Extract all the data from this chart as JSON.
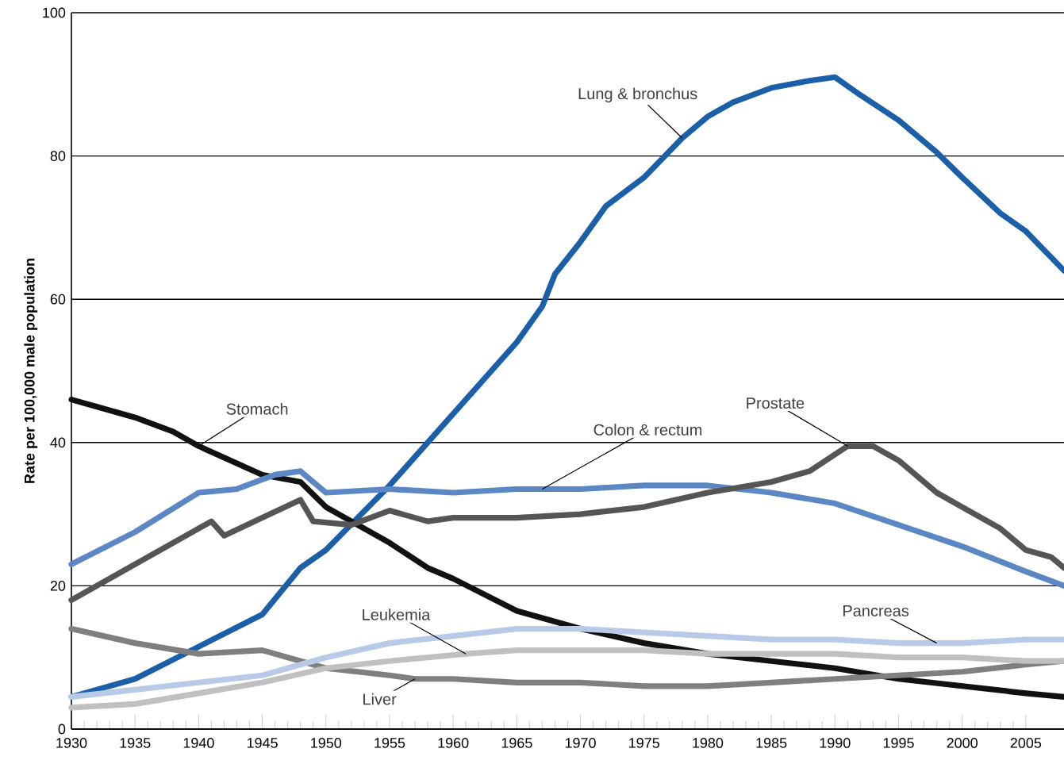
{
  "chart_data": {
    "type": "line",
    "ylabel": "Rate per 100,000 male population",
    "xlim": [
      1930,
      2008
    ],
    "xticks": [
      1930,
      1935,
      1940,
      1945,
      1950,
      1955,
      1960,
      1965,
      1970,
      1975,
      1980,
      1985,
      1990,
      1995,
      2000,
      2005
    ],
    "ylim": [
      0,
      100
    ],
    "yticks": [
      0,
      20,
      40,
      60,
      80,
      100
    ],
    "grid": "y",
    "legend": false,
    "marker": "none",
    "line_style": "solid",
    "series": [
      {
        "name": "Lung & bronchus",
        "color": "#1a5fa8",
        "x": [
          1930,
          1935,
          1940,
          1945,
          1948,
          1950,
          1955,
          1960,
          1965,
          1967,
          1968,
          1970,
          1972,
          1975,
          1978,
          1980,
          1982,
          1985,
          1988,
          1990,
          1992,
          1995,
          1998,
          2000,
          2003,
          2005,
          2008
        ],
        "values": [
          4.5,
          7,
          11.5,
          16,
          22.5,
          25,
          34,
          44,
          54,
          59,
          63.5,
          68,
          73,
          77,
          82.5,
          85.5,
          87.5,
          89.5,
          90.5,
          91,
          88.5,
          85,
          80.5,
          77,
          72,
          69.5,
          64
        ]
      },
      {
        "name": "Stomach",
        "color": "#111111",
        "x": [
          1930,
          1935,
          1938,
          1940,
          1945,
          1948,
          1950,
          1955,
          1958,
          1960,
          1965,
          1970,
          1975,
          1980,
          1985,
          1990,
          1995,
          2000,
          2005,
          2008
        ],
        "values": [
          46,
          43.5,
          41.5,
          39.5,
          35.5,
          34.5,
          31,
          26,
          22.5,
          21,
          16.5,
          14,
          12,
          10.5,
          9.5,
          8.5,
          7,
          6,
          5,
          4.5
        ]
      },
      {
        "name": "Colon & rectum",
        "color": "#5b87c5",
        "x": [
          1930,
          1935,
          1940,
          1943,
          1946,
          1948,
          1950,
          1955,
          1960,
          1965,
          1967,
          1970,
          1975,
          1980,
          1985,
          1990,
          1995,
          2000,
          2005,
          2008
        ],
        "values": [
          23,
          27.5,
          33,
          33.5,
          35.5,
          36,
          33,
          33.5,
          33,
          33.5,
          33.5,
          33.5,
          34,
          34,
          33,
          31.5,
          28.5,
          25.5,
          22,
          20
        ]
      },
      {
        "name": "Prostate",
        "color": "#555555",
        "x": [
          1930,
          1935,
          1940,
          1941,
          1942,
          1945,
          1948,
          1949,
          1952,
          1955,
          1958,
          1960,
          1965,
          1970,
          1975,
          1980,
          1985,
          1988,
          1991,
          1993,
          1995,
          1998,
          2000,
          2003,
          2005,
          2007,
          2008
        ],
        "values": [
          18,
          23,
          28,
          29,
          27,
          29.5,
          32,
          29,
          28.5,
          30.5,
          29,
          29.5,
          29.5,
          30,
          31,
          33,
          34.5,
          36,
          39.5,
          39.5,
          37.5,
          33,
          31,
          28,
          25,
          24,
          22.5
        ]
      },
      {
        "name": "Liver",
        "color": "#7f7f7f",
        "x": [
          1930,
          1935,
          1940,
          1945,
          1948,
          1950,
          1955,
          1957,
          1960,
          1965,
          1970,
          1975,
          1980,
          1985,
          1990,
          1995,
          2000,
          2005,
          2008
        ],
        "values": [
          14,
          12,
          10.5,
          11,
          9.5,
          8.5,
          7.5,
          7,
          7,
          6.5,
          6.5,
          6,
          6,
          6.5,
          7,
          7.5,
          8,
          9,
          9.5
        ]
      },
      {
        "name": "Pancreas",
        "color": "#b9c9e8",
        "x": [
          1930,
          1935,
          1940,
          1945,
          1950,
          1955,
          1960,
          1965,
          1970,
          1975,
          1980,
          1985,
          1990,
          1995,
          1998,
          2000,
          2005,
          2008
        ],
        "values": [
          4.5,
          5.5,
          6.5,
          7.5,
          10,
          12,
          13,
          14,
          14,
          13.5,
          13,
          12.5,
          12.5,
          12,
          12,
          12,
          12.5,
          12.5
        ]
      },
      {
        "name": "Leukemia",
        "color": "#c0c0c0",
        "x": [
          1930,
          1935,
          1940,
          1945,
          1950,
          1955,
          1961,
          1965,
          1970,
          1975,
          1980,
          1985,
          1990,
          1995,
          2000,
          2005,
          2008
        ],
        "values": [
          3,
          3.5,
          5,
          6.5,
          8.5,
          9.5,
          10.5,
          11,
          11,
          11,
          10.5,
          10.5,
          10.5,
          10,
          10,
          9.5,
          9.5
        ]
      }
    ]
  }
}
